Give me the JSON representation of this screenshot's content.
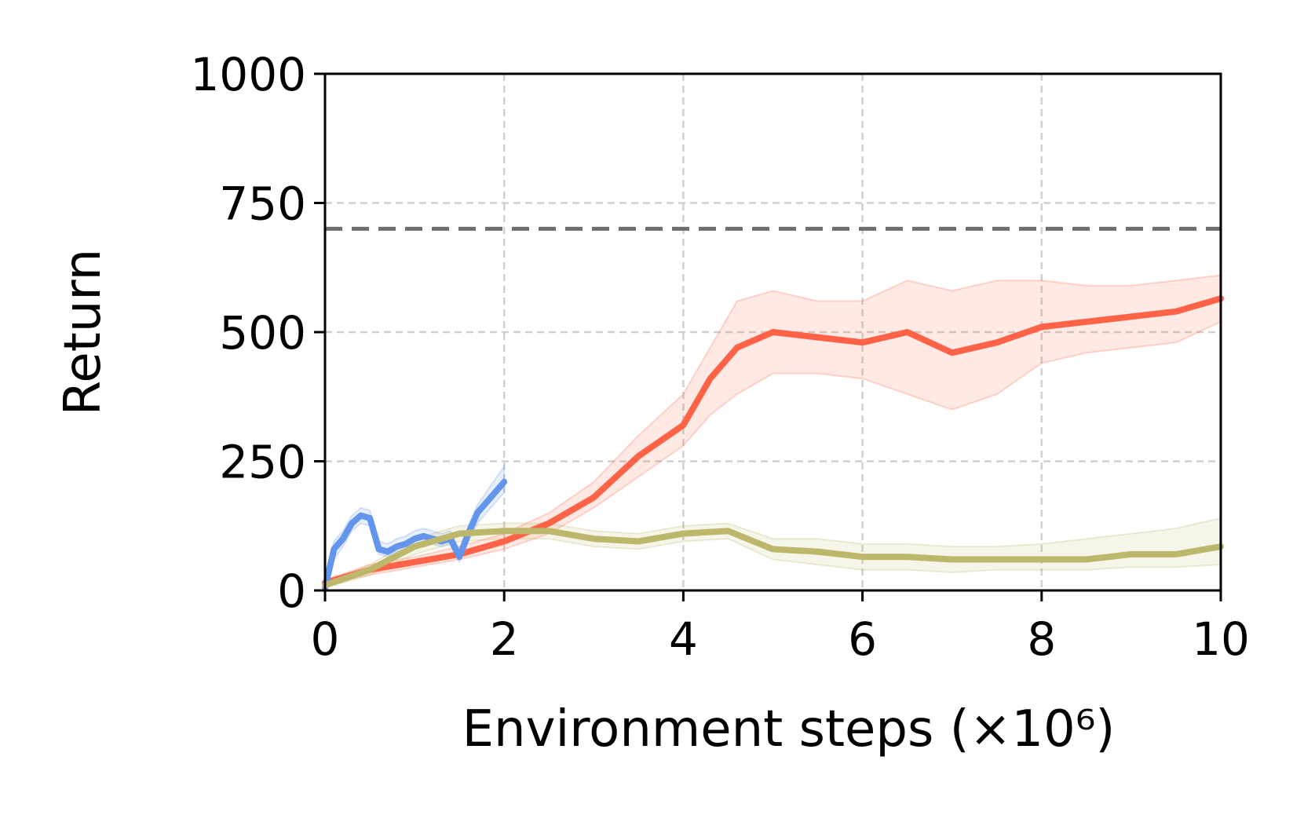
{
  "chart_data": {
    "type": "line",
    "xlabel": "Environment steps (×10⁶)",
    "ylabel": "Return",
    "xlim": [
      0,
      10
    ],
    "ylim": [
      0,
      1000
    ],
    "x_ticks": [
      "0",
      "2",
      "4",
      "6",
      "8",
      "10"
    ],
    "y_ticks": [
      "0",
      "250",
      "500",
      "750",
      "1000"
    ],
    "grid": true,
    "reference_line": {
      "y": 700,
      "style": "dashed",
      "color": "#6e6e6e"
    },
    "series": [
      {
        "color": "#ff6347",
        "x": [
          0,
          0.5,
          1.0,
          1.5,
          2.0,
          2.5,
          3.0,
          3.5,
          4.0,
          4.3,
          4.6,
          5.0,
          5.5,
          6.0,
          6.5,
          7.0,
          7.5,
          8.0,
          8.5,
          9.0,
          9.5,
          10.0
        ],
        "y": [
          15,
          40,
          55,
          70,
          95,
          130,
          180,
          260,
          320,
          410,
          470,
          500,
          490,
          480,
          500,
          460,
          480,
          510,
          520,
          530,
          540,
          565
        ],
        "band_lower": [
          10,
          30,
          45,
          60,
          80,
          110,
          160,
          220,
          280,
          340,
          380,
          420,
          420,
          410,
          380,
          350,
          380,
          440,
          460,
          470,
          480,
          520
        ],
        "band_upper": [
          20,
          50,
          65,
          85,
          110,
          150,
          210,
          300,
          380,
          470,
          560,
          580,
          560,
          560,
          600,
          580,
          600,
          600,
          590,
          590,
          600,
          610
        ]
      },
      {
        "color": "#6495ed",
        "x": [
          0,
          0.1,
          0.2,
          0.3,
          0.4,
          0.5,
          0.6,
          0.7,
          0.8,
          0.9,
          1.0,
          1.1,
          1.2,
          1.3,
          1.4,
          1.5,
          1.6,
          1.7,
          1.8,
          1.9,
          2.0
        ],
        "y": [
          5,
          80,
          100,
          130,
          145,
          140,
          80,
          75,
          85,
          90,
          100,
          105,
          100,
          95,
          100,
          65,
          110,
          150,
          170,
          190,
          210
        ],
        "band_lower": [
          0,
          60,
          85,
          115,
          130,
          125,
          70,
          65,
          75,
          80,
          90,
          95,
          90,
          85,
          90,
          55,
          95,
          130,
          150,
          170,
          190
        ],
        "band_upper": [
          10,
          95,
          115,
          145,
          160,
          155,
          95,
          90,
          100,
          105,
          115,
          120,
          115,
          110,
          115,
          80,
          125,
          165,
          190,
          215,
          240
        ]
      },
      {
        "color": "#bdb76b",
        "x": [
          0,
          0.5,
          1.0,
          1.5,
          2.0,
          2.5,
          3.0,
          3.5,
          4.0,
          4.5,
          5.0,
          5.5,
          6.0,
          6.5,
          7.0,
          7.5,
          8.0,
          8.5,
          9.0,
          9.5,
          10.0
        ],
        "y": [
          10,
          40,
          85,
          110,
          115,
          115,
          100,
          95,
          110,
          115,
          80,
          75,
          65,
          65,
          60,
          60,
          60,
          60,
          70,
          70,
          85
        ],
        "band_lower": [
          5,
          30,
          70,
          95,
          100,
          100,
          85,
          80,
          95,
          100,
          60,
          50,
          40,
          40,
          35,
          40,
          40,
          40,
          45,
          45,
          50
        ],
        "band_upper": [
          15,
          50,
          100,
          125,
          130,
          130,
          115,
          110,
          125,
          130,
          100,
          100,
          90,
          90,
          85,
          85,
          90,
          100,
          110,
          120,
          140
        ]
      }
    ]
  }
}
